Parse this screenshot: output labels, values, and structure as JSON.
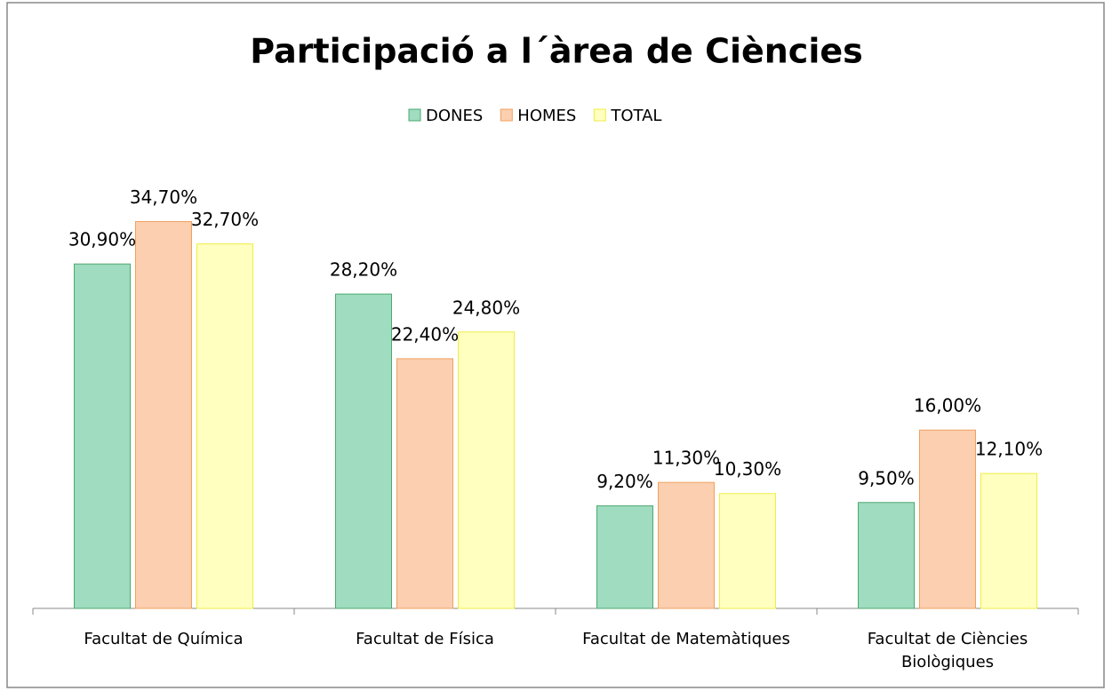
{
  "chart_data": {
    "type": "bar",
    "title": "Participació a l´àrea de Ciències",
    "categories": [
      "Facultat de Química",
      "Facultat de Física",
      "Facultat de Matemàtiques",
      "Facultat de Ciències Biològiques"
    ],
    "series": [
      {
        "name": "DONES",
        "color": "#9fdcc0",
        "values": [
          30.9,
          28.2,
          9.2,
          9.5
        ],
        "value_labels": [
          "30,90%",
          "28,20%",
          "9,20%",
          "9,50%"
        ]
      },
      {
        "name": "HOMES",
        "color": "#fbcfb0",
        "values": [
          34.7,
          22.4,
          11.3,
          16.0
        ],
        "value_labels": [
          "34,70%",
          "22,40%",
          "11,30%",
          "16,00%"
        ]
      },
      {
        "name": "TOTAL",
        "color": "#ffffc0",
        "values": [
          32.7,
          24.8,
          10.3,
          12.1
        ],
        "value_labels": [
          "32,70%",
          "24,80%",
          "10,30%",
          "12,10%"
        ]
      }
    ],
    "ylim": [
      0,
      40
    ],
    "legend": "top"
  }
}
